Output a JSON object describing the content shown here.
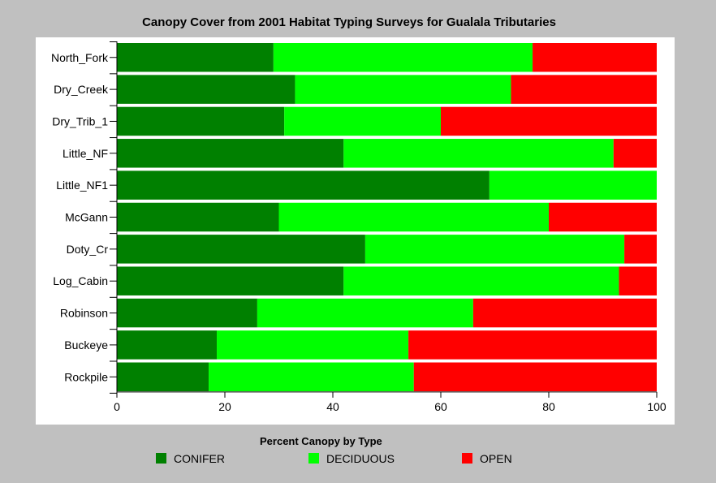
{
  "chart_data": {
    "type": "bar",
    "orientation": "horizontal",
    "stacked": true,
    "title": "Canopy Cover from 2001 Habitat Typing Surveys for Gualala Tributaries",
    "xlabel": "",
    "ylabel": "",
    "xlim": [
      0,
      100
    ],
    "xticks": [
      0,
      20,
      40,
      60,
      80,
      100
    ],
    "legend_title": "Percent Canopy by Type",
    "legend_position": "bottom",
    "categories": [
      "North_Fork",
      "Dry_Creek",
      "Dry_Trib_1",
      "Little_NF",
      "Little_NF1",
      "McGann",
      "Doty_Cr",
      "Log_Cabin",
      "Robinson",
      "Buckeye",
      "Rockpile"
    ],
    "series": [
      {
        "name": "CONIFER",
        "color": "#008000",
        "values": [
          29,
          33,
          31,
          42,
          69,
          30,
          46,
          42,
          26,
          18.5,
          17
        ]
      },
      {
        "name": "DECIDUOUS",
        "color": "#00ff00",
        "values": [
          48,
          40,
          29,
          50,
          31,
          50,
          48,
          51,
          40,
          35.5,
          38
        ]
      },
      {
        "name": "OPEN",
        "color": "#ff0000",
        "values": [
          23,
          27,
          40,
          8,
          0,
          20,
          6,
          7,
          34,
          46,
          45
        ]
      }
    ]
  }
}
